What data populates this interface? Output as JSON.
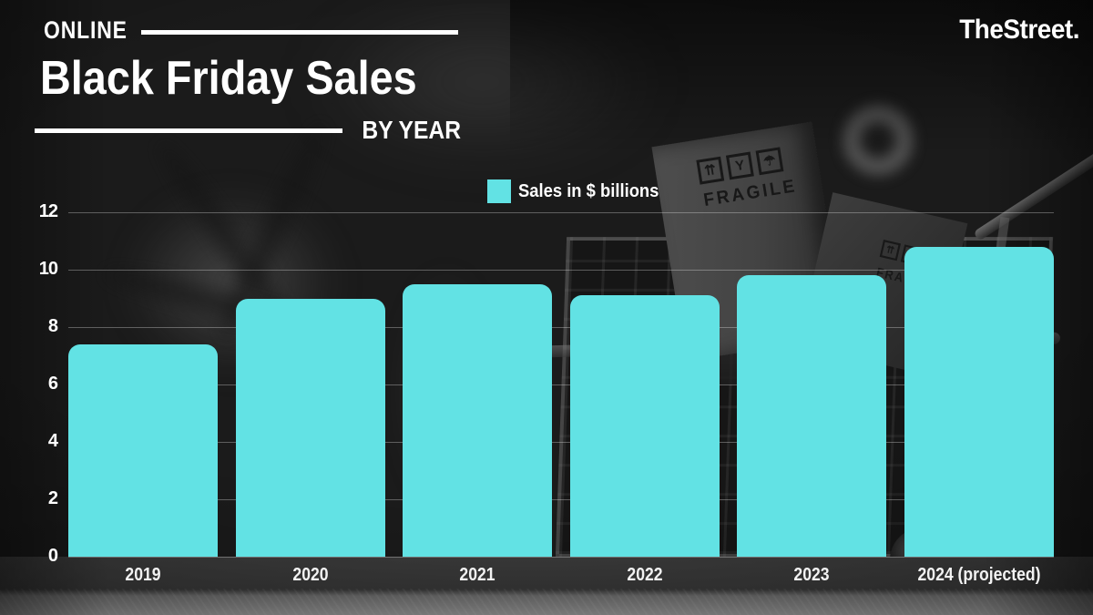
{
  "brand": {
    "logo_text": "TheStreet."
  },
  "header": {
    "kicker": "ONLINE",
    "title": "Black Friday Sales",
    "subtitle": "BY YEAR"
  },
  "legend": {
    "label": "Sales in $ billions"
  },
  "background": {
    "fragile_label": "FRAGILE",
    "fragile_icons": [
      "⇈",
      "Y",
      "☂"
    ]
  },
  "colors": {
    "bar": "#62e2e4",
    "text": "#ffffff",
    "gridline": "rgba(255,255,255,0.3)"
  },
  "chart_data": {
    "type": "bar",
    "title": "Online Black Friday Sales by Year",
    "categories": [
      "2019",
      "2020",
      "2021",
      "2022",
      "2023",
      "2024 (projected)"
    ],
    "values": [
      7.4,
      9.0,
      9.5,
      9.1,
      9.8,
      10.8
    ],
    "series_name": "Sales in $ billions",
    "unit": "$ billions",
    "ylim": [
      0,
      12
    ],
    "yticks": [
      0,
      2,
      4,
      6,
      8,
      10,
      12
    ],
    "grid": true,
    "legend_position": "top-center",
    "bar_color": "#62e2e4"
  }
}
